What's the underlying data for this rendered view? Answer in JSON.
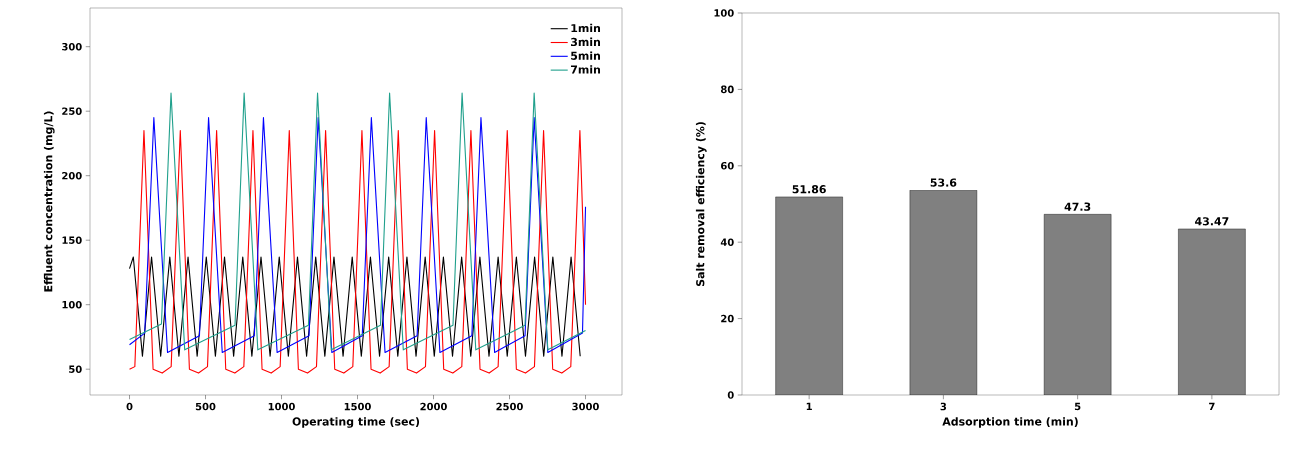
{
  "chart_data": [
    {
      "type": "line",
      "xlabel": "Operating time (sec)",
      "ylabel": "Effluent concentration (mg/L)",
      "xlim": [
        -260,
        3240
      ],
      "ylim": [
        30,
        330
      ],
      "xticks": [
        0,
        500,
        1000,
        1500,
        2000,
        2500,
        3000
      ],
      "yticks": [
        50,
        100,
        150,
        200,
        250,
        300
      ],
      "legend": "top right",
      "series": [
        {
          "name": "1min",
          "color": "#000000",
          "x": [
            0,
            25,
            85,
            145,
            205,
            265,
            325,
            385,
            445,
            505,
            565,
            625,
            685,
            745,
            805,
            865,
            925,
            985,
            1045,
            1105,
            1165,
            1225,
            1285,
            1345,
            1405,
            1465,
            1525,
            1585,
            1645,
            1705,
            1765,
            1825,
            1885,
            1945,
            2005,
            2065,
            2125,
            2185,
            2245,
            2305,
            2365,
            2425,
            2485,
            2545,
            2605,
            2665,
            2725,
            2785,
            2845,
            2905,
            2965
          ],
          "values": [
            128,
            137,
            60,
            137,
            60,
            137,
            60,
            137,
            60,
            137,
            60,
            137,
            60,
            137,
            60,
            137,
            60,
            137,
            60,
            137,
            60,
            137,
            60,
            137,
            60,
            137,
            60,
            137,
            60,
            137,
            60,
            137,
            60,
            137,
            60,
            137,
            60,
            137,
            60,
            137,
            60,
            137,
            60,
            137,
            60,
            137,
            60,
            137,
            60,
            137,
            60
          ]
        },
        {
          "name": "3min",
          "color": "#ff0000",
          "x": [
            0,
            35,
            95,
            155,
            215,
            274,
            334,
            394,
            454,
            513,
            573,
            633,
            693,
            752,
            812,
            872,
            932,
            991,
            1051,
            1111,
            1171,
            1230,
            1290,
            1350,
            1410,
            1469,
            1529,
            1589,
            1649,
            1708,
            1768,
            1828,
            1888,
            1947,
            2007,
            2067,
            2127,
            2186,
            2246,
            2306,
            2366,
            2425,
            2485,
            2545,
            2605,
            2664,
            2724,
            2784,
            2844,
            2903,
            2963,
            3000
          ],
          "values": [
            50,
            52,
            235,
            50,
            47,
            52,
            235,
            50,
            47,
            52,
            235,
            50,
            47,
            52,
            235,
            50,
            47,
            52,
            235,
            50,
            47,
            52,
            235,
            50,
            47,
            52,
            235,
            50,
            47,
            52,
            235,
            50,
            47,
            52,
            235,
            50,
            47,
            52,
            235,
            50,
            47,
            52,
            235,
            50,
            47,
            52,
            235,
            50,
            47,
            52,
            235,
            100
          ]
        },
        {
          "name": "5min",
          "color": "#0000ff",
          "x": [
            0,
            100,
            160,
            250,
            460,
            520,
            610,
            821,
            881,
            971,
            1181,
            1241,
            1331,
            1531,
            1591,
            1681,
            1892,
            1952,
            2042,
            2252,
            2312,
            2402,
            2602,
            2662,
            2752,
            2980,
            3000
          ],
          "values": [
            69,
            78,
            245,
            63,
            76,
            245,
            63,
            76,
            245,
            63,
            76,
            245,
            63,
            76,
            245,
            63,
            76,
            245,
            63,
            76,
            245,
            63,
            76,
            245,
            63,
            78,
            176
          ]
        },
        {
          "name": "7min",
          "color": "#20a08c",
          "x": [
            0,
            210,
            273,
            363,
            694,
            754,
            844,
            1177,
            1237,
            1327,
            1651,
            1711,
            1801,
            2128,
            2188,
            2278,
            2602,
            2662,
            2752,
            3000
          ],
          "values": [
            73,
            85,
            264,
            65,
            84,
            264,
            65,
            84,
            264,
            65,
            84,
            264,
            65,
            84,
            264,
            65,
            84,
            264,
            65,
            80
          ]
        }
      ]
    },
    {
      "type": "bar",
      "xlabel": "Adsorption time (min)",
      "ylabel": "Salt removal efficiency (%)",
      "categories": [
        "1",
        "3",
        "5",
        "7"
      ],
      "values": [
        51.86,
        53.6,
        47.3,
        43.47
      ],
      "color": "#808080",
      "ylim": [
        0,
        100
      ],
      "yticks": [
        0,
        20,
        40,
        60,
        80,
        100
      ],
      "data_labels": true
    }
  ]
}
